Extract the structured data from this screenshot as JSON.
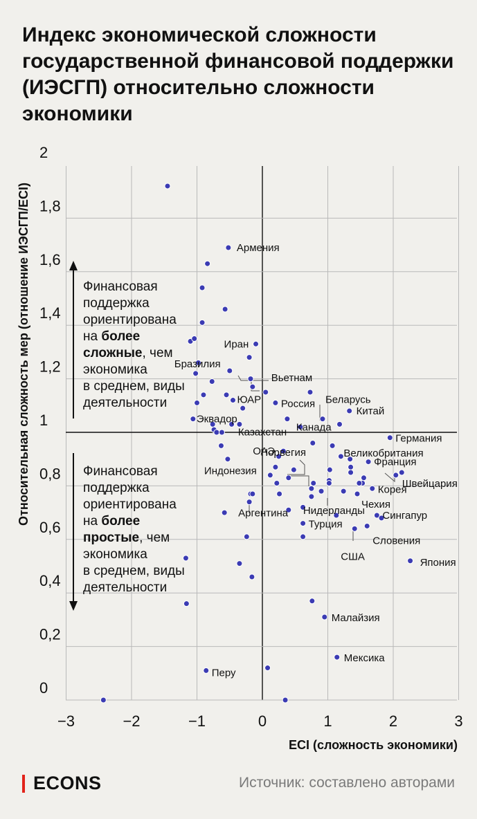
{
  "title": "Индекс экономической сложности государственной финансовой поддержки (ИЭСГП)  относительно сложности экономики",
  "footer": {
    "logo": "ECONS",
    "source": "Источник: составлено авторами"
  },
  "annotations": {
    "upper": {
      "lines": [
        [
          {
            "t": "Финансовая"
          }
        ],
        [
          {
            "t": "поддержка"
          }
        ],
        [
          {
            "t": "ориентирована"
          }
        ],
        [
          {
            "t": "на "
          },
          {
            "t": "более",
            "b": true
          }
        ],
        [
          {
            "t": "сложные",
            "b": true
          },
          {
            "t": ", чем"
          }
        ],
        [
          {
            "t": "экономика"
          }
        ],
        [
          {
            "t": "в среднем, виды"
          }
        ],
        [
          {
            "t": "деятельности"
          }
        ]
      ]
    },
    "lower": {
      "lines": [
        [
          {
            "t": "Финансовая"
          }
        ],
        [
          {
            "t": "поддержка"
          }
        ],
        [
          {
            "t": "ориентирована"
          }
        ],
        [
          {
            "t": "на "
          },
          {
            "t": "более",
            "b": true
          }
        ],
        [
          {
            "t": "простые",
            "b": true
          },
          {
            "t": ", чем"
          }
        ],
        [
          {
            "t": "экономика"
          }
        ],
        [
          {
            "t": "в среднем, виды"
          }
        ],
        [
          {
            "t": "деятельности"
          }
        ]
      ]
    }
  },
  "chart_data": {
    "type": "scatter",
    "title": "Индекс экономической сложности государственной финансовой поддержки (ИЭСГП)  относительно сложности экономики",
    "xlabel": "ECI (сложность экономики)",
    "ylabel": "Относительная сложность мер (отношение ИЭСГП/ECI)",
    "xlim": [
      -3,
      3
    ],
    "ylim": [
      -0.05,
      2
    ],
    "x_ticks": [
      -3,
      -2,
      -1,
      0,
      1,
      2,
      3
    ],
    "x_tick_labels": [
      "−3",
      "−2",
      "−1",
      "0",
      "1",
      "2",
      "3"
    ],
    "y_ticks": [
      0,
      0.2,
      0.4,
      0.6,
      0.8,
      1,
      1.2,
      1.4,
      1.6,
      1.8,
      2
    ],
    "y_tick_labels": [
      "0",
      "0,2",
      "0,4",
      "0,6",
      "0,8",
      "1",
      "1,2",
      "1,4",
      "1,6",
      "1,8",
      "2"
    ],
    "grid": true,
    "point_color": "#3b3bb3",
    "points": [
      {
        "x": -1.45,
        "y": 1.92
      },
      {
        "x": -0.52,
        "y": 1.69,
        "label": "Армения"
      },
      {
        "x": -0.84,
        "y": 1.63
      },
      {
        "x": -0.92,
        "y": 1.54
      },
      {
        "x": -0.57,
        "y": 1.46
      },
      {
        "x": -0.92,
        "y": 1.41
      },
      {
        "x": -1.1,
        "y": 1.34
      },
      {
        "x": -1.04,
        "y": 1.35
      },
      {
        "x": -0.1,
        "y": 1.33,
        "label": "Иран"
      },
      {
        "x": -0.2,
        "y": 1.28
      },
      {
        "x": -0.98,
        "y": 1.26
      },
      {
        "x": -1.02,
        "y": 1.22
      },
      {
        "x": -0.5,
        "y": 1.23,
        "label": "Бразилия"
      },
      {
        "x": -0.77,
        "y": 1.19
      },
      {
        "x": -0.18,
        "y": 1.2
      },
      {
        "x": -0.15,
        "y": 1.17
      },
      {
        "x": 0.05,
        "y": 1.15,
        "label": "Вьетнам"
      },
      {
        "x": -0.55,
        "y": 1.14
      },
      {
        "x": -0.45,
        "y": 1.12,
        "label": "ЮАР"
      },
      {
        "x": -0.9,
        "y": 1.14
      },
      {
        "x": -1.0,
        "y": 1.11
      },
      {
        "x": 0.2,
        "y": 1.11,
        "label": "Россия"
      },
      {
        "x": 0.73,
        "y": 1.15
      },
      {
        "x": -0.3,
        "y": 1.09
      },
      {
        "x": -1.06,
        "y": 1.05,
        "label": "Эквадор"
      },
      {
        "x": -0.76,
        "y": 1.03
      },
      {
        "x": -0.74,
        "y": 1.01
      },
      {
        "x": -0.7,
        "y": 1.0
      },
      {
        "x": -0.62,
        "y": 1.0
      },
      {
        "x": -0.47,
        "y": 1.03
      },
      {
        "x": -0.35,
        "y": 1.03,
        "label": "Казахстан"
      },
      {
        "x": 0.38,
        "y": 1.05
      },
      {
        "x": 0.92,
        "y": 1.05,
        "label": "Беларусь"
      },
      {
        "x": 1.33,
        "y": 1.08,
        "label": "Китай"
      },
      {
        "x": 1.18,
        "y": 1.03
      },
      {
        "x": 0.58,
        "y": 1.02,
        "label": "Канада"
      },
      {
        "x": 1.95,
        "y": 0.98,
        "label": "Германия"
      },
      {
        "x": -0.63,
        "y": 0.95
      },
      {
        "x": 0.77,
        "y": 0.96
      },
      {
        "x": 1.07,
        "y": 0.95
      },
      {
        "x": 0.32,
        "y": 0.93,
        "label": "ОАЭ"
      },
      {
        "x": 0.25,
        "y": 0.91
      },
      {
        "x": 1.2,
        "y": 0.91,
        "label": "Великобритания"
      },
      {
        "x": -0.53,
        "y": 0.9,
        "label": "Индонезия"
      },
      {
        "x": 1.34,
        "y": 0.9
      },
      {
        "x": 1.62,
        "y": 0.89,
        "label": "Франция"
      },
      {
        "x": 0.2,
        "y": 0.87
      },
      {
        "x": 0.48,
        "y": 0.86,
        "label": "Норвегия"
      },
      {
        "x": 1.03,
        "y": 0.86
      },
      {
        "x": 1.35,
        "y": 0.87
      },
      {
        "x": 1.35,
        "y": 0.85
      },
      {
        "x": 2.13,
        "y": 0.85
      },
      {
        "x": 2.04,
        "y": 0.84,
        "label": "Швейцария"
      },
      {
        "x": 0.12,
        "y": 0.84
      },
      {
        "x": 0.4,
        "y": 0.83
      },
      {
        "x": 1.55,
        "y": 0.83
      },
      {
        "x": 1.53,
        "y": 0.81
      },
      {
        "x": 0.22,
        "y": 0.81
      },
      {
        "x": 0.78,
        "y": 0.81
      },
      {
        "x": 1.02,
        "y": 0.82
      },
      {
        "x": 1.02,
        "y": 0.81
      },
      {
        "x": 1.48,
        "y": 0.81
      },
      {
        "x": 0.75,
        "y": 0.79
      },
      {
        "x": 0.9,
        "y": 0.78
      },
      {
        "x": 1.24,
        "y": 0.78
      },
      {
        "x": 1.68,
        "y": 0.79,
        "label": "Корея"
      },
      {
        "x": 1.45,
        "y": 0.77,
        "label": "Чехия"
      },
      {
        "x": -0.18,
        "y": 0.77
      },
      {
        "x": -0.15,
        "y": 0.77
      },
      {
        "x": 0.26,
        "y": 0.77
      },
      {
        "x": 0.75,
        "y": 0.76,
        "label": "Нидерланды"
      },
      {
        "x": -0.2,
        "y": 0.74,
        "label": "Аргентина"
      },
      {
        "x": 0.62,
        "y": 0.72
      },
      {
        "x": 0.4,
        "y": 0.71
      },
      {
        "x": 1.75,
        "y": 0.69,
        "label": "Сингапур"
      },
      {
        "x": 1.82,
        "y": 0.68
      },
      {
        "x": -0.58,
        "y": 0.7
      },
      {
        "x": 1.13,
        "y": 0.69
      },
      {
        "x": 0.62,
        "y": 0.66,
        "label": "Турция"
      },
      {
        "x": 1.6,
        "y": 0.65,
        "label": "Словения"
      },
      {
        "x": 1.41,
        "y": 0.64,
        "label": "США"
      },
      {
        "x": -0.24,
        "y": 0.61
      },
      {
        "x": 0.62,
        "y": 0.61
      },
      {
        "x": 2.26,
        "y": 0.52,
        "label": "Япония"
      },
      {
        "x": -1.17,
        "y": 0.53
      },
      {
        "x": -0.35,
        "y": 0.51
      },
      {
        "x": -0.16,
        "y": 0.46
      },
      {
        "x": -1.16,
        "y": 0.36
      },
      {
        "x": 0.76,
        "y": 0.37
      },
      {
        "x": 0.95,
        "y": 0.31,
        "label": "Малайзия"
      },
      {
        "x": 1.14,
        "y": 0.16,
        "label": "Мексика"
      },
      {
        "x": 0.08,
        "y": 0.12
      },
      {
        "x": -0.86,
        "y": 0.11,
        "label": "Перу"
      },
      {
        "x": -2.43,
        "y": 0.0
      },
      {
        "x": 0.35,
        "y": 0.0
      }
    ]
  }
}
